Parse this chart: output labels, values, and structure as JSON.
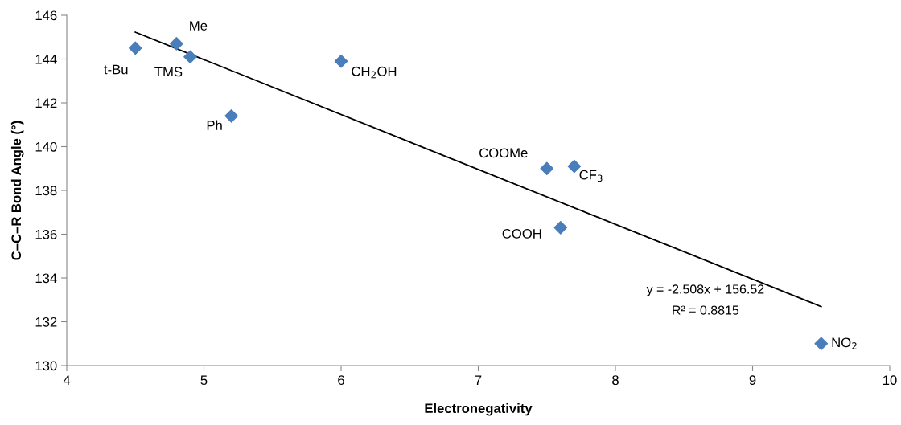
{
  "chart_data": {
    "type": "scatter",
    "xlabel": "Electronegativity",
    "ylabel": "C–C–R Bond Angle (°)",
    "xlim": [
      4,
      10
    ],
    "xticks": [
      4,
      5,
      6,
      7,
      8,
      9,
      10
    ],
    "ylim": [
      130,
      146
    ],
    "yticks": [
      130,
      132,
      134,
      136,
      138,
      140,
      142,
      144,
      146
    ],
    "grid": false,
    "series": [
      {
        "color": "#4a7ebb",
        "marker": "diamond",
        "x": [
          4.5,
          4.8,
          4.9,
          5.2,
          6.0,
          7.5,
          7.7,
          7.6,
          9.5
        ],
        "values": [
          144.5,
          144.7,
          144.1,
          141.4,
          143.9,
          139.0,
          139.1,
          136.3,
          131.0
        ]
      },
      {
        "type": "line",
        "color": "#000000",
        "marker": "none",
        "line_style": "solid",
        "x": [
          4.5,
          9.5
        ],
        "values": [
          145.23,
          132.69
        ]
      }
    ],
    "annotations": [
      {
        "text": "t-Bu",
        "x": 4.5,
        "y": 144.5
      },
      {
        "text": "Me",
        "x": 4.8,
        "y": 144.7
      },
      {
        "text": "TMS",
        "x": 4.9,
        "y": 144.1
      },
      {
        "text": "Ph",
        "x": 5.2,
        "y": 141.4
      },
      {
        "text": "CH$_{2}$OH",
        "x": 6.0,
        "y": 143.9
      },
      {
        "text": "COOMe",
        "x": 7.5,
        "y": 139.0
      },
      {
        "text": "CF$_{3}$",
        "x": 7.7,
        "y": 139.1
      },
      {
        "text": "COOH",
        "x": 7.6,
        "y": 136.3
      },
      {
        "text": "NO$_{2}$",
        "x": 9.5,
        "y": 131.0
      },
      "y = -2.508x + 156.52",
      "R² = 0.8815"
    ]
  }
}
